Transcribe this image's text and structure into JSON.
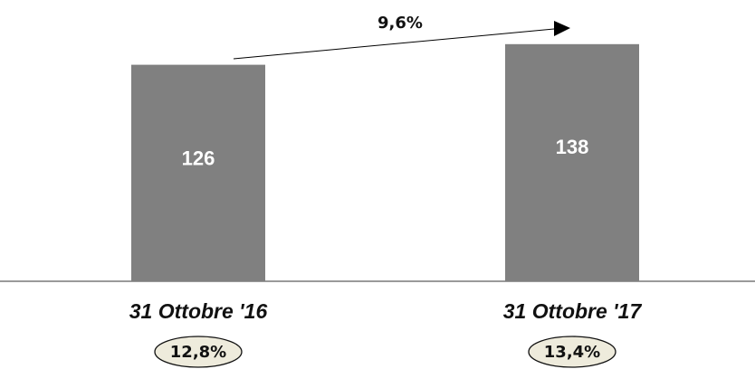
{
  "chart_data": {
    "type": "bar",
    "categories": [
      "31 Ottobre '16",
      "31 Ottobre '17"
    ],
    "values": [
      126,
      138
    ],
    "value_labels": [
      "126",
      "138"
    ],
    "growth_label": "9,6%",
    "badges": [
      "12,8%",
      "13,4%"
    ],
    "ylim": [
      0,
      160
    ],
    "colors": {
      "bar": "#808080",
      "bar_text": "#ffffff",
      "badge_fill": "#eeebdc",
      "axis": "#9a9a9a",
      "arrow": "#000000"
    }
  }
}
